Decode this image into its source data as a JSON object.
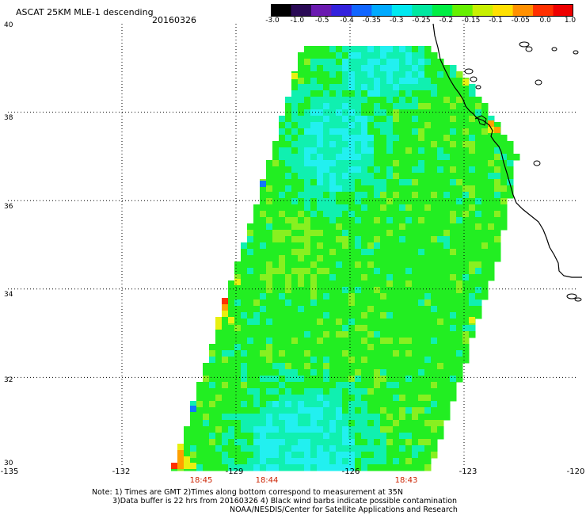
{
  "title": {
    "main": "ASCAT 25KM MLE-1 descending",
    "date": "20160326"
  },
  "colorbar": {
    "tick_labels": [
      "-3.0",
      "-1.0",
      "-0.5",
      "-0.4",
      "-0.35",
      "-0.3",
      "-0.25",
      "-0.2",
      "-0.15",
      "-0.1",
      "-0.05",
      "0.0",
      "1.0"
    ],
    "colors": [
      "#000000",
      "#2a0a55",
      "#6a1ab0",
      "#3322dd",
      "#1166ff",
      "#00aaff",
      "#00e8f0",
      "#00e8a0",
      "#00ee44",
      "#66f000",
      "#c8f000",
      "#ffe000",
      "#ff9000",
      "#ff3000",
      "#ee0000"
    ]
  },
  "axes": {
    "lat_labels": [
      "40",
      "38",
      "36",
      "34",
      "32",
      "30"
    ],
    "lon_labels": [
      "-135",
      "-132",
      "-129",
      "-126",
      "-123",
      "-120"
    ],
    "grid": "dotted"
  },
  "time_labels": [
    "18:45",
    "18:44",
    "18:43"
  ],
  "notes": [
    "Note: 1) Times are GMT 2)Times along bottom correspond to measurement at 35N",
    "3)Data buffer is 22 hrs from 20160326 4) Black wind barbs indicate possible contamination",
    "NOAA/NESDIS/Center for Satellite Applications and Research"
  ],
  "swath": {
    "value_colors": {
      "cyan": "#22f0f0",
      "aqua": "#10f0b0",
      "green": "#22ee22",
      "lime": "#88f020",
      "yellow": "#e8f010",
      "orange": "#ffa000",
      "red": "#ff3000",
      "blue": "#1177ff"
    }
  }
}
